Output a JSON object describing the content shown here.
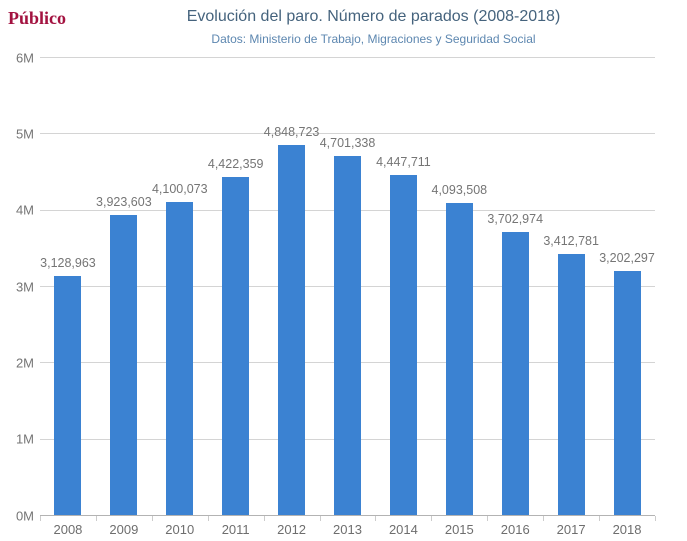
{
  "logo": {
    "text": "Público",
    "color": "#a31240"
  },
  "header": {
    "title": "Evolución del paro. Número de parados (2008-2018)",
    "subtitle": "Datos: Ministerio de Trabajo, Migraciones y Seguridad Social"
  },
  "colors": {
    "bar": "#3b82d2",
    "gridline": "#d4d4d4",
    "axis": "#b3b3b3",
    "tick_label": "#757575",
    "value_label": "#757575",
    "title": "#45637d",
    "subtitle": "#5d87b0"
  },
  "chart_data": {
    "type": "bar",
    "title": "Evolución del paro. Número de parados (2008-2018)",
    "subtitle": "Datos: Ministerio de Trabajo, Migraciones y Seguridad Social",
    "categories": [
      "2008",
      "2009",
      "2010",
      "2011",
      "2012",
      "2013",
      "2014",
      "2015",
      "2016",
      "2017",
      "2018"
    ],
    "values": [
      3128963,
      3923603,
      4100073,
      4422359,
      4848723,
      4701338,
      4447711,
      4093508,
      3702974,
      3412781,
      3202297
    ],
    "value_labels": [
      "3,128,963",
      "3,923,603",
      "4,100,073",
      "4,422,359",
      "4,848,723",
      "4,701,338",
      "4,447,711",
      "4,093,508",
      "3,702,974",
      "3,412,781",
      "3,202,297"
    ],
    "xlabel": "",
    "ylabel": "",
    "yticks": [
      "0M",
      "1M",
      "2M",
      "3M",
      "4M",
      "5M",
      "6M"
    ],
    "ylim": [
      0,
      6000000
    ],
    "grid": "horizontal",
    "legend": "none",
    "bar_color": "#3b82d2"
  }
}
